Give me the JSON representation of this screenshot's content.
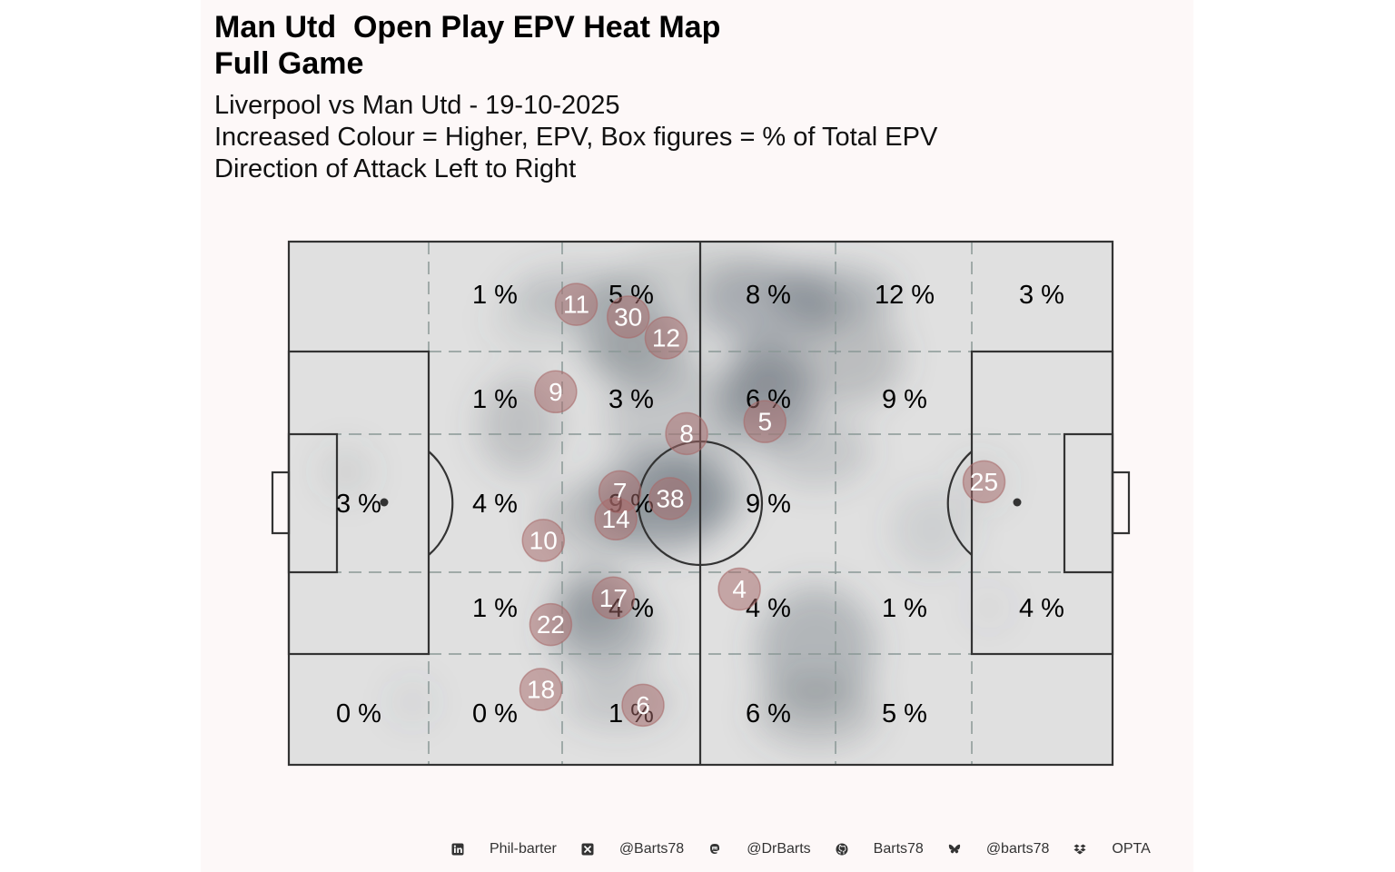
{
  "title": "Man Utd  Open Play EPV Heat Map\nFull Game",
  "subtitle": "Liverpool vs Man Utd - 19-10-2025\nIncreased Colour = Higher, EPV, Box figures = % of Total EPV\nDirection of Attack Left to Right",
  "chart_data": {
    "type": "heatmap",
    "attack_direction": "left-to-right",
    "zone_grid": {
      "columns": 6,
      "rows": 5,
      "cells": [
        [
          "",
          "1 %",
          "5 %",
          "8 %",
          "12 %",
          "3 %"
        ],
        [
          "",
          "1 %",
          "3 %",
          "6 %",
          "9 %",
          ""
        ],
        [
          "3 %",
          "4 %",
          "9 %",
          "9 %",
          "",
          ""
        ],
        [
          "",
          "1 %",
          "4 %",
          "4 %",
          "1 %",
          "4 %"
        ],
        [
          "0 %",
          "0 %",
          "1 %",
          "6 %",
          "5 %",
          ""
        ]
      ]
    },
    "players": [
      {
        "number": "11",
        "x": 34.9,
        "y": 88.0
      },
      {
        "number": "30",
        "x": 41.2,
        "y": 85.6
      },
      {
        "number": "12",
        "x": 45.8,
        "y": 81.6
      },
      {
        "number": "9",
        "x": 32.4,
        "y": 71.3
      },
      {
        "number": "8",
        "x": 48.3,
        "y": 63.3
      },
      {
        "number": "5",
        "x": 57.8,
        "y": 65.6
      },
      {
        "number": "7",
        "x": 40.2,
        "y": 52.2
      },
      {
        "number": "38",
        "x": 46.3,
        "y": 50.9
      },
      {
        "number": "14",
        "x": 39.7,
        "y": 47.0
      },
      {
        "number": "10",
        "x": 30.9,
        "y": 42.9
      },
      {
        "number": "25",
        "x": 84.4,
        "y": 54.1
      },
      {
        "number": "4",
        "x": 54.7,
        "y": 33.6
      },
      {
        "number": "17",
        "x": 39.4,
        "y": 31.9
      },
      {
        "number": "22",
        "x": 31.8,
        "y": 26.8
      },
      {
        "number": "18",
        "x": 30.6,
        "y": 14.4
      },
      {
        "number": "6",
        "x": 43.0,
        "y": 11.4
      }
    ]
  },
  "colors": {
    "background": "#fdf8f8",
    "pitch": "#e0e0e0",
    "pitch_lines": "#333333",
    "zone_lines": "#8a9896",
    "heat": "#4a5560",
    "player_marker": "#a86a6a"
  },
  "footer": [
    {
      "icon": "linkedin-icon",
      "label": "Phil-barter"
    },
    {
      "icon": "x-icon",
      "label": "@Barts78"
    },
    {
      "icon": "mastodon-icon",
      "label": "@DrBarts"
    },
    {
      "icon": "github-icon",
      "label": "Barts78"
    },
    {
      "icon": "bluesky-icon",
      "label": "@barts78"
    },
    {
      "icon": "dropbox-icon",
      "label": "OPTA"
    }
  ]
}
